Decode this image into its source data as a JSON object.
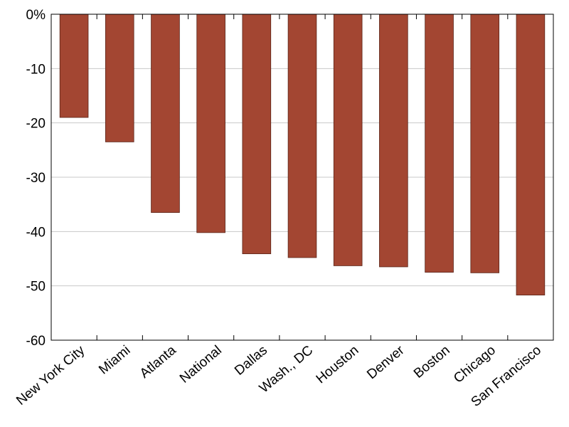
{
  "chart_data": {
    "type": "bar",
    "categories": [
      "New York City",
      "Miami",
      "Atlanta",
      "National",
      "Dallas",
      "Wash., DC",
      "Houston",
      "Denver",
      "Boston",
      "Chicago",
      "San Francisco"
    ],
    "values": [
      -19,
      -23.5,
      -36.5,
      -40.2,
      -44.1,
      -44.8,
      -46.3,
      -46.5,
      -47.5,
      -47.6,
      -51.7
    ],
    "ylim": [
      -60,
      0
    ],
    "yticks": [
      0,
      -10,
      -20,
      -30,
      -40,
      -50,
      -60
    ],
    "ytick_labels": [
      "0%",
      "-10",
      "-20",
      "-30",
      "-40",
      "-50",
      "-60"
    ],
    "grid": true,
    "bar_color": "#a34632",
    "grid_color": "#c8c8c8"
  }
}
